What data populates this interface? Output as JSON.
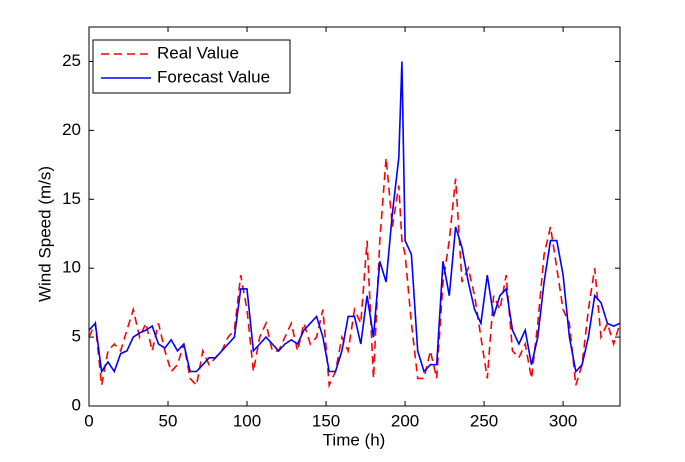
{
  "chart_data": {
    "type": "line",
    "x_label": "Time (h)",
    "y_label": "Wind Speed (m/s)",
    "x": [
      0,
      4,
      8,
      12,
      16,
      20,
      24,
      28,
      32,
      36,
      40,
      44,
      48,
      52,
      56,
      60,
      64,
      68,
      72,
      76,
      80,
      84,
      88,
      92,
      96,
      100,
      104,
      108,
      112,
      116,
      120,
      124,
      128,
      132,
      136,
      140,
      144,
      148,
      152,
      156,
      160,
      164,
      168,
      172,
      176,
      180,
      184,
      188,
      192,
      196,
      198,
      200,
      204,
      208,
      212,
      216,
      220,
      224,
      228,
      232,
      236,
      240,
      244,
      248,
      252,
      256,
      260,
      264,
      268,
      272,
      276,
      280,
      284,
      288,
      292,
      296,
      300,
      304,
      308,
      312,
      316,
      320,
      324,
      328,
      332,
      336
    ],
    "series": [
      {
        "name": "Real Value",
        "color": "#ff0000",
        "dash": true,
        "values": [
          5,
          6,
          1.5,
          4,
          4.5,
          4,
          5.5,
          7,
          5,
          6,
          4,
          6,
          4,
          2.5,
          3,
          4.5,
          2,
          1.5,
          4,
          3,
          3.5,
          4,
          5,
          5.5,
          9.5,
          7,
          2.5,
          5,
          6,
          4,
          4,
          5,
          6,
          4,
          6,
          4.5,
          5,
          7,
          1.5,
          2.5,
          5,
          4,
          7,
          6,
          12,
          2,
          12,
          18,
          13,
          16,
          12,
          11,
          6,
          2,
          2,
          4,
          2,
          9,
          12,
          16.5,
          9,
          10,
          8,
          5,
          2,
          8,
          7,
          9.5,
          4,
          3.5,
          4.5,
          2,
          6,
          11,
          13,
          10,
          7,
          6,
          1.5,
          3,
          7,
          10,
          5,
          6,
          4.5,
          6
        ]
      },
      {
        "name": "Forecast Value",
        "color": "#0000ff",
        "dash": false,
        "values": [
          5.5,
          6,
          2.5,
          3.2,
          2.5,
          3.8,
          4,
          5,
          5.3,
          5.5,
          5.8,
          4.5,
          4.2,
          4.8,
          4,
          4.5,
          2.5,
          2.5,
          3,
          3.5,
          3.5,
          4,
          4.5,
          5,
          8.5,
          8.5,
          4,
          4.5,
          5,
          4.5,
          4,
          4.5,
          4.8,
          4.5,
          5.5,
          6,
          6.5,
          5,
          2.5,
          2.5,
          4,
          6.5,
          6.5,
          4.5,
          8,
          5,
          10.5,
          9,
          14,
          18,
          25,
          12,
          11,
          4,
          2.5,
          3,
          3,
          10.5,
          8,
          13,
          11.5,
          9,
          7,
          6,
          9.5,
          6.5,
          8,
          8.5,
          5.5,
          4.5,
          5.5,
          3,
          5,
          9,
          12,
          12,
          9.5,
          5,
          2.5,
          3,
          5,
          8,
          7.5,
          6,
          5.8,
          6
        ]
      }
    ],
    "xlim": [
      0,
      336
    ],
    "xticks": [
      0,
      50,
      100,
      150,
      200,
      250,
      300
    ],
    "ylim": [
      0,
      27.5
    ],
    "yticks": [
      0,
      5,
      10,
      15,
      20,
      25
    ],
    "legend": "upper left"
  }
}
